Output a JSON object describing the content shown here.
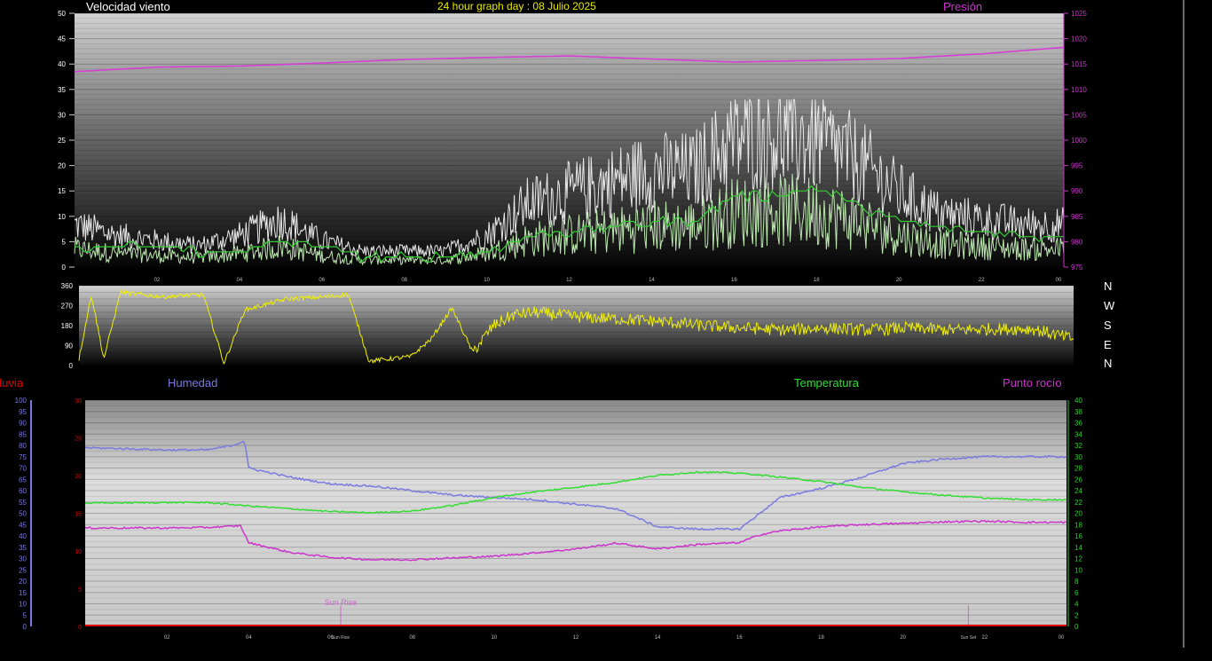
{
  "labels": {
    "wind": "Velocidad viento",
    "graph_title": "24 hour graph day : 08 Julio 2025",
    "pressure": "Presión",
    "rain": "Lluvia",
    "humidity": "Humedad",
    "temperature": "Temperatura",
    "dewpoint": "Punto rocío",
    "sunrise": "Sun Rise",
    "sunrise_axis": "Sun Rise",
    "sunset_axis": "Sun Set"
  },
  "compass": [
    "N",
    "W",
    "S",
    "E",
    "N"
  ],
  "colors": {
    "wind_gust": "#e8e8e8",
    "wind_avg": "#33cc33",
    "wind_lull": "#bde8b0",
    "pressure": "#d63fd6",
    "direction": "#f0f000",
    "humidity": "#7a7ae0",
    "temperature": "#33dd33",
    "dewpoint": "#cc33cc",
    "rain": "#e00000",
    "left_axis_wind": "#ffffff",
    "right_axis_pressure": "#cc33cc",
    "right_axis_temp": "#33cc33",
    "title": "#e8e800"
  },
  "chart_data": [
    {
      "type": "line",
      "name": "wind-pressure",
      "x_ticks": [
        "02",
        "04",
        "06",
        "08",
        "10",
        "12",
        "14",
        "16",
        "18",
        "20",
        "22",
        "00"
      ],
      "left_axis": {
        "ylim": [
          0,
          50
        ],
        "ticks": [
          "0",
          "5",
          "10",
          "15",
          "20",
          "25",
          "30",
          "35",
          "40",
          "45",
          "50"
        ]
      },
      "right_axis": {
        "ylim": [
          975,
          1025
        ],
        "ticks": [
          "975",
          "980",
          "985",
          "990",
          "995",
          "1000",
          "1005",
          "1010",
          "1015",
          "1020",
          "1025"
        ]
      },
      "series": [
        {
          "name": "Velocidad viento",
          "axis": "left",
          "x": [
            0,
            1,
            2,
            3,
            4,
            5,
            6,
            7,
            8,
            9,
            10,
            11,
            12,
            13,
            14,
            15,
            16,
            17,
            18,
            19,
            20,
            21,
            22,
            23,
            24
          ],
          "values": [
            8,
            6,
            5,
            4,
            6,
            9,
            5,
            3,
            3,
            3,
            6,
            12,
            14,
            16,
            18,
            18,
            24,
            25,
            24,
            20,
            14,
            10,
            9,
            8,
            8
          ]
        },
        {
          "name": "wind-average",
          "axis": "left",
          "x": [
            0,
            1,
            2,
            3,
            4,
            5,
            6,
            7,
            8,
            9,
            10,
            11,
            12,
            13,
            14,
            15,
            16,
            17,
            18,
            19,
            20,
            21,
            22,
            23,
            24
          ],
          "values": [
            3,
            4,
            4,
            3,
            3,
            5,
            4,
            2,
            2,
            2,
            3,
            6,
            7,
            8,
            9,
            9,
            14,
            14,
            16,
            12,
            9,
            8,
            7,
            6,
            6
          ]
        },
        {
          "name": "Presión",
          "axis": "right",
          "x": [
            0,
            2,
            4,
            6,
            8,
            10,
            12,
            14,
            16,
            18,
            20,
            22,
            24
          ],
          "values": [
            1013.5,
            1014.4,
            1014.6,
            1015.2,
            1015.9,
            1016.3,
            1016.6,
            1016.0,
            1015.4,
            1015.7,
            1016.1,
            1017.0,
            1018.3
          ]
        }
      ]
    },
    {
      "type": "line",
      "name": "wind-direction",
      "ylim": [
        0,
        360
      ],
      "ticks": [
        "0",
        "90",
        "180",
        "270",
        "360"
      ],
      "series": [
        {
          "name": "direction",
          "x": [
            0,
            0.3,
            0.6,
            1,
            2,
            3,
            3.5,
            4,
            5,
            6,
            6.5,
            7,
            8,
            8.5,
            9,
            9.5,
            10,
            10.5,
            11,
            12,
            13,
            14,
            14.5,
            15,
            16,
            17,
            18,
            19,
            20,
            21,
            22,
            23,
            24
          ],
          "values": [
            30,
            320,
            30,
            330,
            310,
            320,
            10,
            250,
            300,
            310,
            320,
            20,
            40,
            120,
            260,
            60,
            180,
            230,
            240,
            220,
            210,
            200,
            190,
            180,
            170,
            160,
            170,
            160,
            170,
            160,
            165,
            165,
            120
          ]
        }
      ]
    },
    {
      "type": "line",
      "name": "humidity-temp",
      "left_axis_humidity": {
        "ylim": [
          0,
          100
        ],
        "ticks": [
          "0",
          "5",
          "10",
          "15",
          "20",
          "25",
          "30",
          "35",
          "40",
          "45",
          "50",
          "55",
          "60",
          "65",
          "70",
          "75",
          "80",
          "85",
          "90",
          "95",
          "100"
        ]
      },
      "left_axis_rain": {
        "ylim": [
          0,
          30
        ],
        "ticks": [
          "0",
          "5",
          "10",
          "15",
          "20",
          "25",
          "30"
        ]
      },
      "right_axis_temp": {
        "ylim": [
          0,
          40
        ],
        "ticks": [
          "0",
          "2",
          "4",
          "6",
          "8",
          "10",
          "12",
          "14",
          "16",
          "18",
          "20",
          "22",
          "24",
          "26",
          "28",
          "30",
          "32",
          "34",
          "36",
          "38",
          "40"
        ]
      },
      "x_ticks": [
        "02",
        "04",
        "06",
        "08",
        "10",
        "12",
        "14",
        "16",
        "18",
        "20",
        "22",
        "00"
      ],
      "series": [
        {
          "name": "Humedad",
          "axis": "humidity",
          "x": [
            0,
            2,
            3,
            3.6,
            3.9,
            4,
            5,
            6,
            7,
            8,
            9,
            10,
            11,
            12,
            13,
            14,
            15,
            16,
            17,
            18,
            19,
            20,
            21,
            22,
            23,
            24
          ],
          "values": [
            79,
            78,
            78,
            80,
            82,
            70,
            66,
            63,
            62,
            60,
            58,
            57,
            56,
            54,
            52,
            44,
            43,
            43,
            57,
            61,
            66,
            72,
            74,
            75,
            75,
            75
          ]
        },
        {
          "name": "Temperatura",
          "axis": "temp",
          "x": [
            0,
            2,
            3,
            4,
            5,
            6,
            7,
            8,
            9,
            10,
            11,
            12,
            13,
            14,
            15,
            16,
            17,
            18,
            19,
            20,
            21,
            22,
            23,
            24
          ],
          "values": [
            21.8,
            21.9,
            21.9,
            21.3,
            20.8,
            20.3,
            20.1,
            20.4,
            21.4,
            22.8,
            23.8,
            24.6,
            25.5,
            26.7,
            27.3,
            27.1,
            26.4,
            25.6,
            24.6,
            23.8,
            23.2,
            22.7,
            22.4,
            22.4
          ]
        },
        {
          "name": "Punto rocío",
          "axis": "temp",
          "x": [
            0,
            2,
            3,
            3.8,
            4,
            5,
            6,
            7,
            8,
            9,
            10,
            11,
            12,
            13,
            14,
            15,
            16,
            16.5,
            17,
            18,
            19,
            20,
            21,
            22,
            23,
            24
          ],
          "values": [
            17.4,
            17.4,
            17.5,
            17.8,
            14.8,
            13.1,
            12.2,
            11.8,
            11.8,
            12.1,
            12.4,
            13.0,
            13.7,
            14.7,
            13.7,
            14.5,
            14.8,
            16.2,
            16.9,
            17.6,
            18.0,
            18.2,
            18.5,
            18.6,
            18.4,
            18.4
          ]
        },
        {
          "name": "Lluvia",
          "axis": "rain",
          "x": [
            0,
            24
          ],
          "values": [
            0,
            0
          ]
        }
      ]
    }
  ]
}
